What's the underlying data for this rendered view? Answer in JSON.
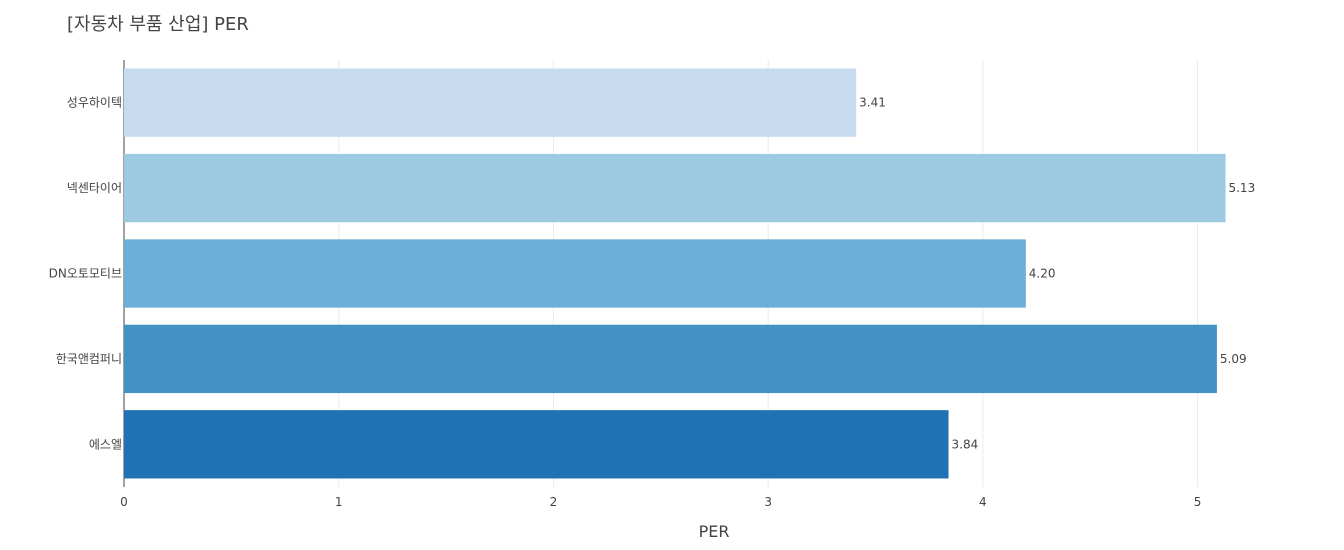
{
  "chart_data": {
    "type": "bar",
    "orientation": "horizontal",
    "title": "[자동차 부품 산업] PER",
    "xlabel": "PER",
    "ylabel": "",
    "xlim": [
      0,
      5.3
    ],
    "x_ticks": [
      0,
      1,
      2,
      3,
      4,
      5
    ],
    "grid": true,
    "categories": [
      "성우하이텍",
      "넥센타이어",
      "DN오토모티브",
      "한국앤컴퍼니",
      "에스엘"
    ],
    "values": [
      3.41,
      5.13,
      4.2,
      5.09,
      3.84
    ],
    "value_labels": [
      "3.41",
      "5.13",
      "4.20",
      "5.09",
      "3.84"
    ],
    "bar_colors": [
      "#c6dbef",
      "#9ecae1",
      "#6baed6",
      "#4292c6",
      "#2171b5"
    ]
  }
}
